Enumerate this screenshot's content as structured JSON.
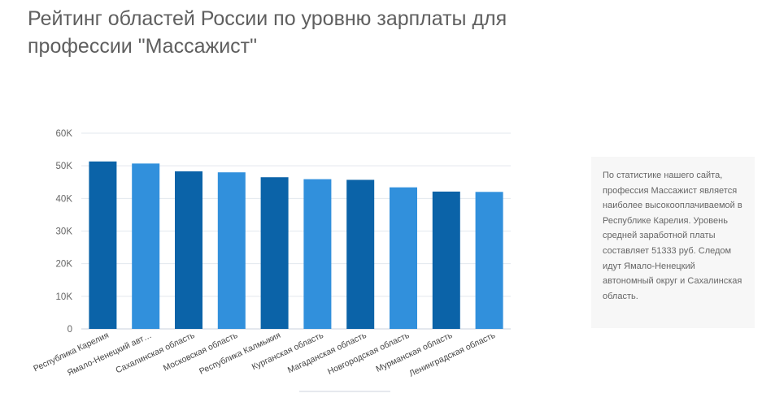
{
  "page": {
    "title": "Рейтинг областей России по уровню зарплаты для профессии \"Массажист\""
  },
  "info": {
    "text": "По статистике нашего сайта, профессия Массажист является наиболее высокооплачиваемой в Республике Карелия. Уровень средней заработной платы составляет 51333 руб. Следом идут Ямало-Ненецкий автономный округ и Сахалинская область."
  },
  "chart_data": {
    "type": "bar",
    "categories": [
      "Республика Карелия",
      "Ямало-Ненецкий авт…",
      "Сахалинская область",
      "Московская область",
      "Республика Калмыкия",
      "Курганская область",
      "Магаданская область",
      "Новгородская область",
      "Мурманская область",
      "Ленинградская область"
    ],
    "values": [
      51333,
      50700,
      48300,
      48000,
      46500,
      45900,
      45700,
      43400,
      42100,
      42000
    ],
    "ylim": [
      0,
      60000
    ],
    "yticks": [
      0,
      10000,
      20000,
      30000,
      40000,
      50000,
      60000
    ],
    "ytick_labels": [
      "0",
      "10K",
      "20K",
      "30K",
      "40K",
      "50K",
      "60K"
    ],
    "grid": true,
    "colors": [
      "#0b63a8",
      "#3190dc"
    ]
  }
}
